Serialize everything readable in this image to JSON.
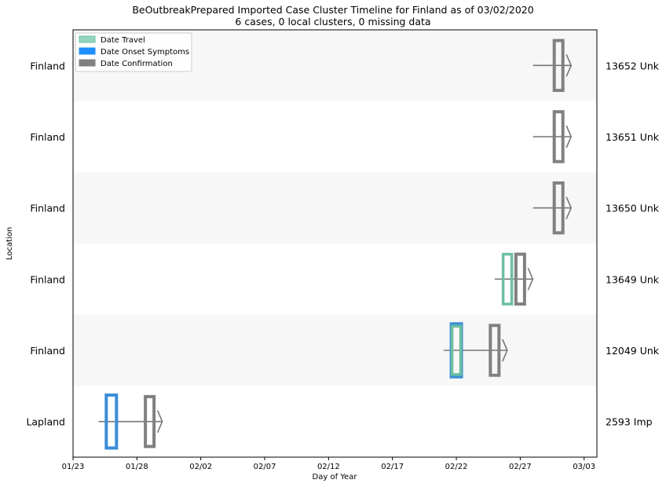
{
  "chart_data": {
    "type": "timeline",
    "title": "BeOutbreakPrepared Imported Case Cluster Timeline for Finland as of 03/02/2020",
    "subtitle": "6 cases, 0 local clusters, 0 missing data",
    "xlabel": "Day of Year",
    "ylabel": "Location",
    "x_range": [
      "2020-01-23",
      "2020-03-04"
    ],
    "x_ticks": [
      {
        "date": "2020-01-23",
        "label": "01/23"
      },
      {
        "date": "2020-01-28",
        "label": "01/28"
      },
      {
        "date": "2020-02-02",
        "label": "02/02"
      },
      {
        "date": "2020-02-07",
        "label": "02/07"
      },
      {
        "date": "2020-02-12",
        "label": "02/12"
      },
      {
        "date": "2020-02-17",
        "label": "02/17"
      },
      {
        "date": "2020-02-22",
        "label": "02/22"
      },
      {
        "date": "2020-02-27",
        "label": "02/27"
      },
      {
        "date": "2020-03-03",
        "label": "03/03"
      }
    ],
    "legend": {
      "placement": "top-left",
      "entries": [
        {
          "label": "Date Travel",
          "color": "#66c2a5"
        },
        {
          "label": "Date Onset Symptoms",
          "color": "#1e90ff"
        },
        {
          "label": "Date Confirmation",
          "color": "#808080"
        }
      ]
    },
    "row_band_color": "#f7f7f7",
    "rows": [
      {
        "location": "Finland",
        "case_label": "13652 Unk",
        "line_start": "2020-02-28",
        "travel": null,
        "onset": null,
        "confirmation": "2020-03-01"
      },
      {
        "location": "Finland",
        "case_label": "13651 Unk",
        "line_start": "2020-02-28",
        "travel": null,
        "onset": null,
        "confirmation": "2020-03-01"
      },
      {
        "location": "Finland",
        "case_label": "13650 Unk",
        "line_start": "2020-02-28",
        "travel": null,
        "onset": null,
        "confirmation": "2020-03-01"
      },
      {
        "location": "Finland",
        "case_label": "13649 Unk",
        "line_start": "2020-02-25",
        "travel": "2020-02-26",
        "onset": null,
        "confirmation": "2020-02-27"
      },
      {
        "location": "Finland",
        "case_label": "12049 Unk",
        "line_start": "2020-02-21",
        "travel": "2020-02-22",
        "onset": "2020-02-22",
        "confirmation": "2020-02-25"
      },
      {
        "location": "Lapland",
        "case_label": "2593 Imp",
        "line_start": "2020-01-25",
        "travel": null,
        "onset": "2020-01-26",
        "confirmation": "2020-01-29"
      }
    ]
  }
}
